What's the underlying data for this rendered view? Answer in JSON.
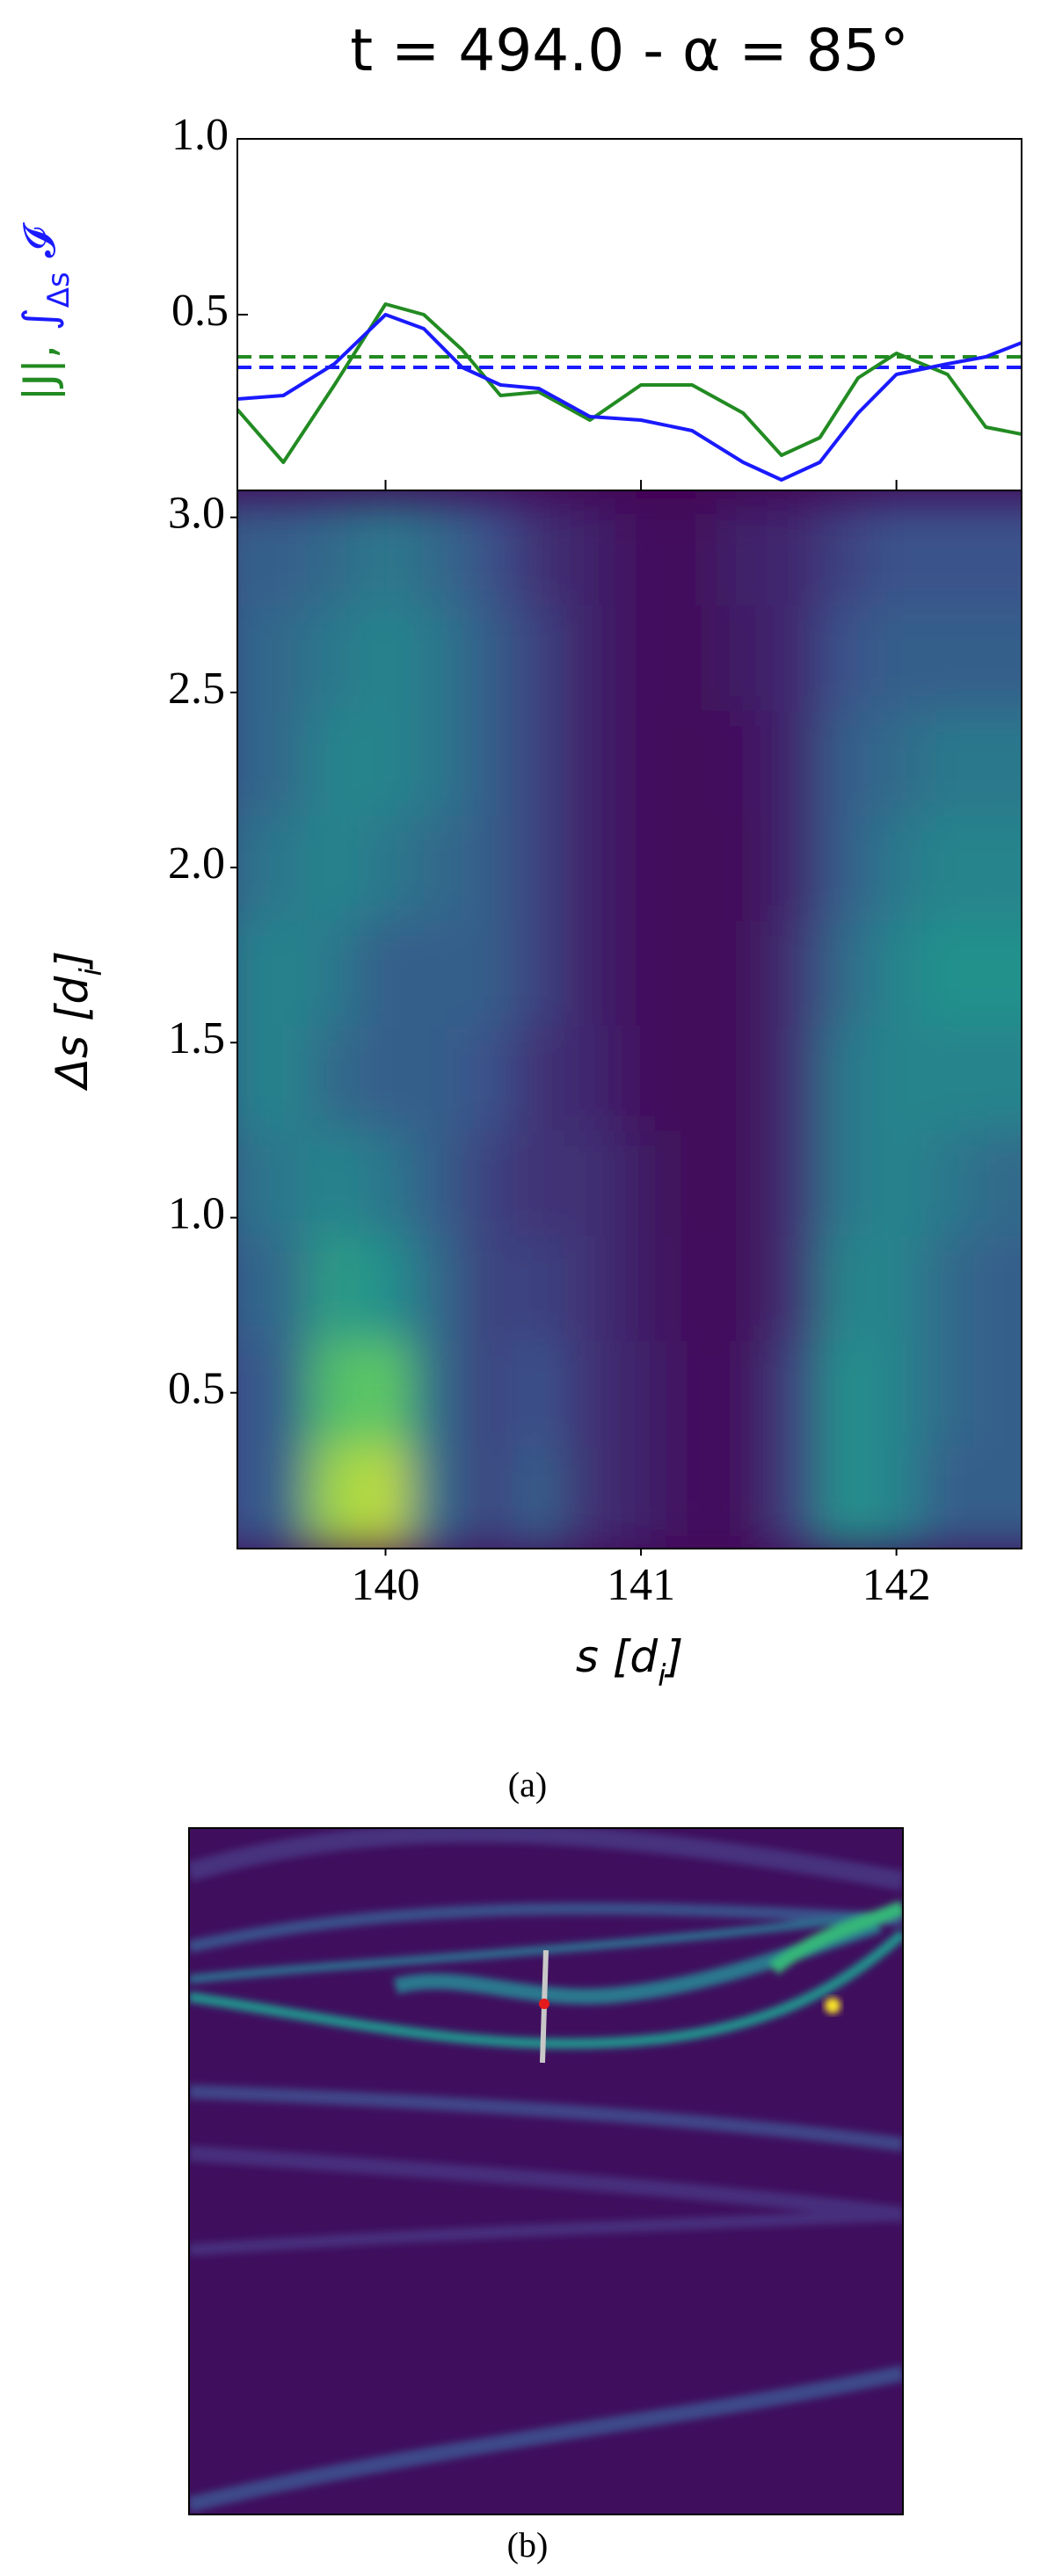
{
  "chart_data": [
    {
      "type": "line",
      "title": "t = 494.0 - α = 85°",
      "ylabel_parts": [
        {
          "text": "|J|, ",
          "color": "#228b22",
          "baseline": "normal"
        },
        {
          "text": "∫",
          "color": "#1a1aff",
          "baseline": "normal"
        },
        {
          "text": "Δs",
          "color": "#1a1aff",
          "baseline": "sub"
        },
        {
          "text": " 𝓘",
          "color": "#1a1aff",
          "baseline": "normal"
        }
      ],
      "x": [
        139.42,
        139.6,
        139.8,
        140.0,
        140.15,
        140.3,
        140.45,
        140.6,
        140.8,
        141.0,
        141.2,
        141.4,
        141.55,
        141.7,
        141.85,
        142.0,
        142.2,
        142.35,
        142.49
      ],
      "series": [
        {
          "name": "|J|",
          "color": "#228b22",
          "values": [
            0.23,
            0.08,
            0.3,
            0.53,
            0.5,
            0.4,
            0.27,
            0.28,
            0.2,
            0.3,
            0.3,
            0.22,
            0.1,
            0.15,
            0.32,
            0.39,
            0.33,
            0.18,
            0.16
          ]
        },
        {
          "name": "∫Δs I",
          "color": "#1a1aff",
          "values": [
            0.26,
            0.27,
            0.36,
            0.5,
            0.46,
            0.35,
            0.3,
            0.29,
            0.21,
            0.2,
            0.17,
            0.08,
            0.03,
            0.08,
            0.22,
            0.33,
            0.36,
            0.38,
            0.42
          ]
        }
      ],
      "reference_lines": [
        {
          "value": 0.38,
          "color": "#228b22",
          "dash": true
        },
        {
          "value": 0.35,
          "color": "#1a1aff",
          "dash": true
        }
      ],
      "xlim": [
        139.42,
        142.49
      ],
      "xticks": [
        140,
        141,
        142
      ],
      "ylim": [
        0,
        1
      ],
      "yticks": [
        0.5,
        {
          "value": 1,
          "label": "1.0"
        }
      ]
    },
    {
      "type": "heatmap",
      "xlabel_parts": [
        {
          "text": "s [d",
          "baseline": "normal"
        },
        {
          "text": "i",
          "baseline": "sub"
        },
        {
          "text": "]",
          "baseline": "normal"
        }
      ],
      "ylabel_parts": [
        {
          "text": "Δs [d",
          "baseline": "normal"
        },
        {
          "text": "i",
          "baseline": "sub"
        },
        {
          "text": "]",
          "baseline": "normal"
        }
      ],
      "colormap": [
        "#440154",
        "#3b528b",
        "#21918c",
        "#5ec962",
        "#fde725"
      ],
      "x": [
        139.5,
        139.7,
        139.9,
        140.1,
        140.3,
        140.5,
        140.7,
        140.9,
        141.1,
        141.3,
        141.5,
        141.7,
        141.9,
        142.1,
        142.3,
        142.5
      ],
      "y": [
        0.2,
        0.5,
        0.8,
        1.1,
        1.4,
        1.7,
        2.0,
        2.3,
        2.6,
        2.9
      ],
      "z": [
        [
          0.25,
          0.3,
          0.85,
          0.9,
          0.35,
          0.2,
          0.3,
          0.15,
          0.1,
          0.05,
          0.05,
          0.2,
          0.5,
          0.45,
          0.3,
          0.3
        ],
        [
          0.25,
          0.3,
          0.7,
          0.75,
          0.35,
          0.2,
          0.25,
          0.15,
          0.1,
          0.05,
          0.05,
          0.2,
          0.5,
          0.45,
          0.35,
          0.3
        ],
        [
          0.3,
          0.35,
          0.55,
          0.5,
          0.35,
          0.2,
          0.2,
          0.15,
          0.08,
          0.03,
          0.03,
          0.15,
          0.45,
          0.45,
          0.35,
          0.3
        ],
        [
          0.35,
          0.4,
          0.45,
          0.4,
          0.3,
          0.2,
          0.15,
          0.15,
          0.08,
          0.02,
          0.03,
          0.15,
          0.4,
          0.45,
          0.4,
          0.35
        ],
        [
          0.4,
          0.45,
          0.35,
          0.3,
          0.3,
          0.25,
          0.15,
          0.12,
          0.05,
          0.02,
          0.03,
          0.15,
          0.4,
          0.45,
          0.45,
          0.45
        ],
        [
          0.4,
          0.45,
          0.4,
          0.3,
          0.3,
          0.3,
          0.2,
          0.1,
          0.05,
          0.02,
          0.03,
          0.15,
          0.35,
          0.45,
          0.5,
          0.5
        ],
        [
          0.35,
          0.4,
          0.45,
          0.4,
          0.35,
          0.3,
          0.2,
          0.1,
          0.05,
          0.02,
          0.03,
          0.12,
          0.3,
          0.4,
          0.45,
          0.45
        ],
        [
          0.3,
          0.35,
          0.45,
          0.45,
          0.4,
          0.3,
          0.2,
          0.1,
          0.05,
          0.02,
          0.05,
          0.12,
          0.3,
          0.35,
          0.4,
          0.4
        ],
        [
          0.3,
          0.35,
          0.4,
          0.45,
          0.4,
          0.3,
          0.2,
          0.1,
          0.05,
          0.03,
          0.08,
          0.12,
          0.25,
          0.3,
          0.3,
          0.3
        ],
        [
          0.3,
          0.3,
          0.35,
          0.4,
          0.35,
          0.25,
          0.15,
          0.1,
          0.05,
          0.03,
          0.1,
          0.12,
          0.2,
          0.25,
          0.25,
          0.25
        ]
      ],
      "zlim": [
        0,
        1
      ],
      "xlim": [
        139.42,
        142.49
      ],
      "xticks": [
        140,
        141,
        142
      ],
      "ylim": [
        0.055,
        3.077
      ],
      "yticks": [
        0.5,
        {
          "value": 1,
          "label": "1.0"
        },
        1.5,
        {
          "value": 2,
          "label": "2.0"
        },
        2.5,
        {
          "value": 3,
          "label": "3.0"
        }
      ]
    }
  ],
  "captions": [
    "(a)",
    "(b)"
  ]
}
